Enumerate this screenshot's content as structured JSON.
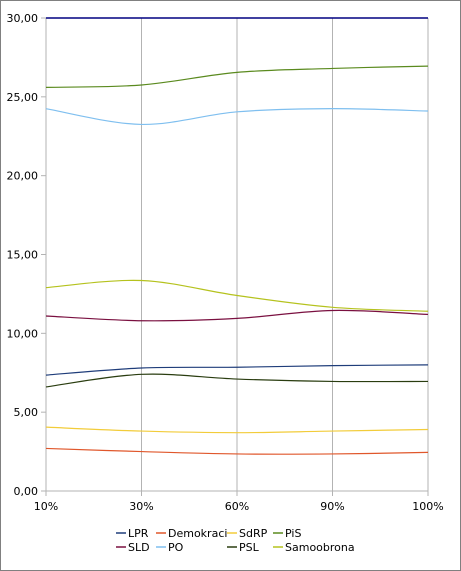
{
  "chart_data": {
    "type": "line",
    "title": "",
    "xlabel": "",
    "ylabel": "",
    "categories": [
      "10%",
      "30%",
      "60%",
      "90%",
      "100%"
    ],
    "ylim": [
      0,
      30
    ],
    "yticks": [
      "0,00",
      "5,00",
      "10,00",
      "15,00",
      "20,00",
      "25,00",
      "30,00"
    ],
    "grid": "vertical",
    "legend_position": "bottom",
    "series": [
      {
        "name": "LPR",
        "color": "#1f3d7a",
        "values": [
          7.35,
          7.8,
          7.85,
          7.95,
          8.0
        ]
      },
      {
        "name": "Demokraci",
        "color": "#e0572b",
        "values": [
          2.7,
          2.5,
          2.35,
          2.35,
          2.45
        ]
      },
      {
        "name": "SdRP",
        "color": "#f2cc3a",
        "values": [
          4.05,
          3.8,
          3.7,
          3.8,
          3.9
        ]
      },
      {
        "name": "PiS",
        "color": "#5a8a1e",
        "values": [
          25.6,
          25.75,
          26.55,
          26.8,
          26.95
        ]
      },
      {
        "name": "SLD",
        "color": "#7a1040",
        "values": [
          11.1,
          10.8,
          10.95,
          11.45,
          11.2
        ]
      },
      {
        "name": "PO",
        "color": "#7fbfef",
        "values": [
          24.25,
          23.25,
          24.05,
          24.25,
          24.1
        ]
      },
      {
        "name": "PSL",
        "color": "#2a3d10",
        "values": [
          6.6,
          7.4,
          7.1,
          6.95,
          6.95
        ]
      },
      {
        "name": "Samoobrona",
        "color": "#b5c21e",
        "values": [
          12.9,
          13.35,
          12.4,
          11.65,
          11.4
        ]
      }
    ],
    "top_line": {
      "color": "#000080",
      "value": 30
    }
  }
}
